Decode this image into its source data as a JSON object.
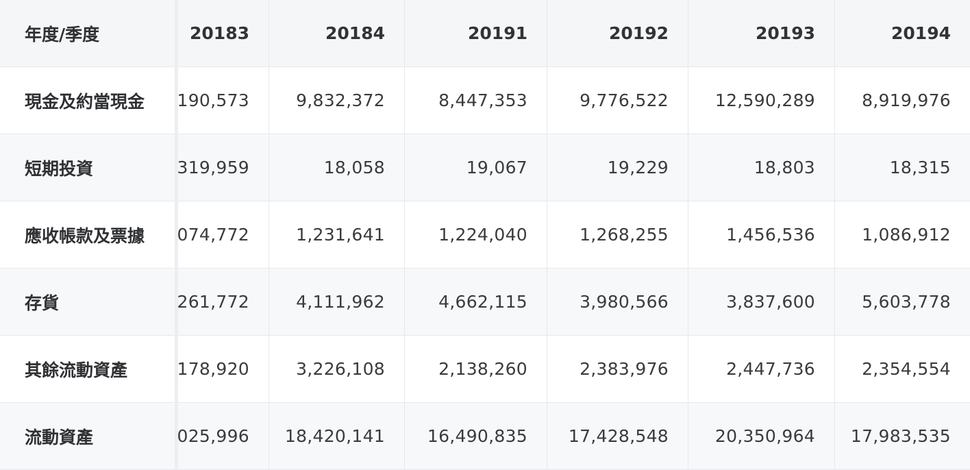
{
  "table": {
    "corner_label": "年度/季度",
    "columns": [
      "20183",
      "20184",
      "20191",
      "20192",
      "20193",
      "20194"
    ],
    "rows": [
      {
        "label": "現金及約當現金",
        "values": [
          "190,573",
          "9,832,372",
          "8,447,353",
          "9,776,522",
          "12,590,289",
          "8,919,976"
        ]
      },
      {
        "label": "短期投資",
        "values": [
          "319,959",
          "18,058",
          "19,067",
          "19,229",
          "18,803",
          "18,315"
        ]
      },
      {
        "label": "應收帳款及票據",
        "values": [
          "074,772",
          "1,231,641",
          "1,224,040",
          "1,268,255",
          "1,456,536",
          "1,086,912"
        ]
      },
      {
        "label": "存貨",
        "values": [
          "261,772",
          "4,111,962",
          "4,662,115",
          "3,980,566",
          "3,837,600",
          "5,603,778"
        ]
      },
      {
        "label": "其餘流動資產",
        "values": [
          "178,920",
          "3,226,108",
          "2,138,260",
          "2,383,976",
          "2,447,736",
          "2,354,554"
        ]
      },
      {
        "label": "流動資產",
        "values": [
          "025,996",
          "18,420,141",
          "16,490,835",
          "17,428,548",
          "20,350,964",
          "17,983,535"
        ]
      }
    ]
  },
  "colors": {
    "header_bg": "#f5f6f8",
    "alt_row_bg": "#f7f8fa",
    "border": "#e6e8eb",
    "text": "#303133"
  }
}
